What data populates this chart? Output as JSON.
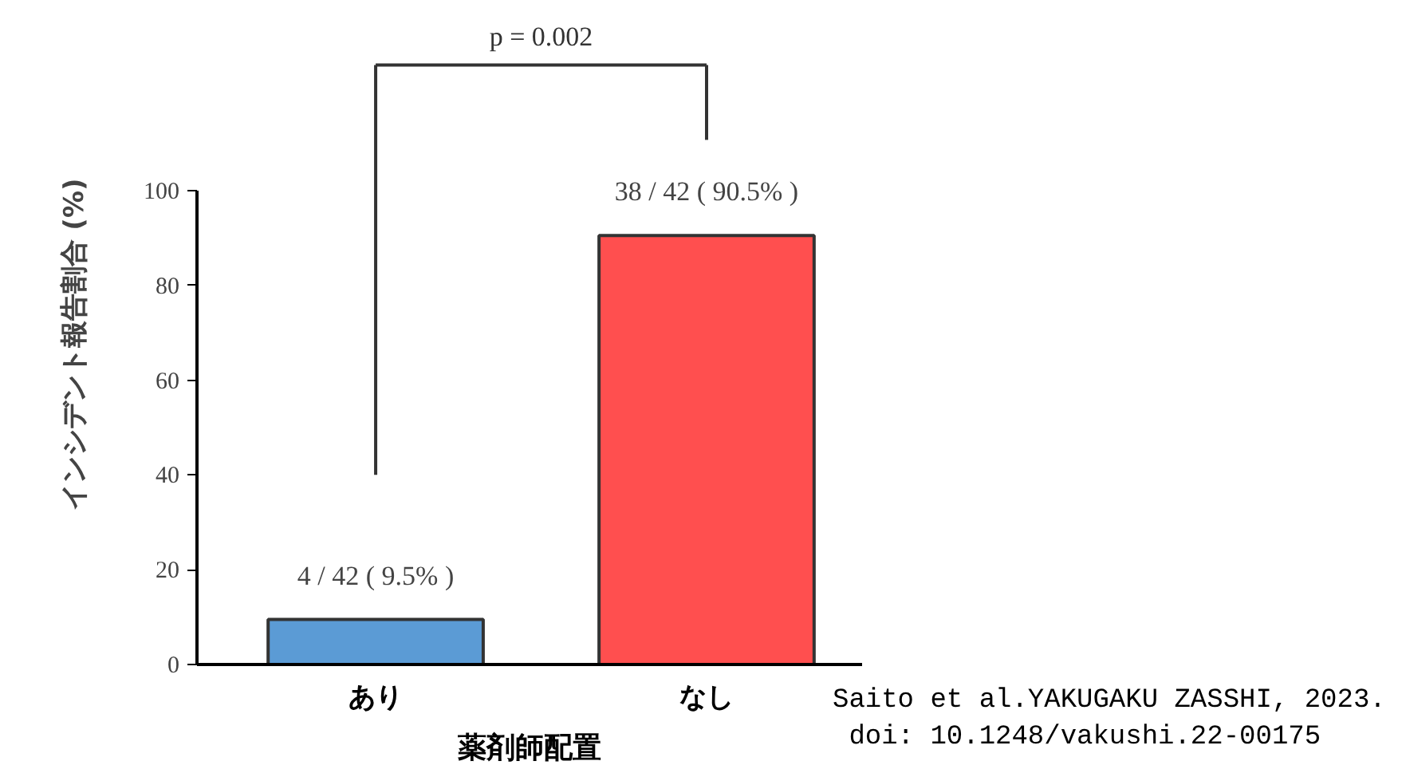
{
  "chart_data": {
    "type": "bar",
    "categories": [
      "あり",
      "なし"
    ],
    "values": [
      9.5,
      90.5
    ],
    "colors": [
      "#5b9bd5",
      "#ff4f4f"
    ],
    "value_labels": [
      "4 / 42 ( 9.5% )",
      "38 / 42 ( 90.5% )"
    ],
    "xlabel": "薬剤師配置",
    "ylabel": "インシデント報告割合 (%)",
    "ylim": [
      0,
      100
    ],
    "yticks": [
      0,
      20,
      40,
      60,
      80,
      100
    ],
    "annotations": [
      "p = 0.002",
      "Saito et al.YAKUGAKU ZASSHI, 2023.",
      "doi: 10.1248/vakushi.22-00175"
    ]
  }
}
